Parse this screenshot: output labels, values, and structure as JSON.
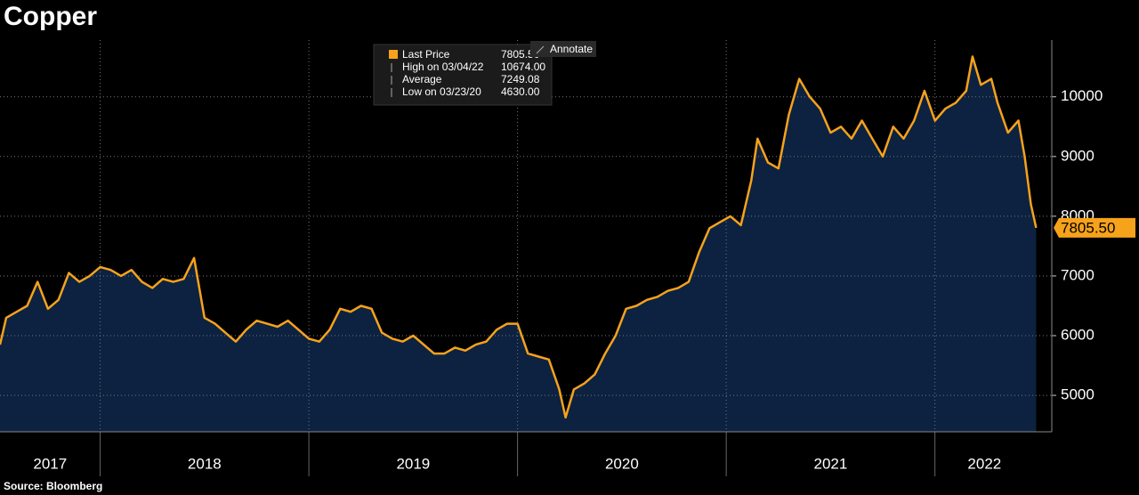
{
  "chart_data": {
    "type": "line",
    "title": "Copper",
    "source": "Source: Bloomberg",
    "annotate": "Annotate",
    "legend_box": [
      {
        "label": "High on 03/04/22",
        "value": "10674.00"
      },
      {
        "label": "Average",
        "value": "7249.08"
      },
      {
        "label": "Low on 03/23/20",
        "value": "4630.00"
      }
    ],
    "legend_last_value": "7805.50",
    "x": [
      2017.52,
      2017.55,
      2017.6,
      2017.65,
      2017.7,
      2017.75,
      2017.8,
      2017.85,
      2017.9,
      2017.95,
      2018.0,
      2018.05,
      2018.1,
      2018.15,
      2018.2,
      2018.25,
      2018.3,
      2018.35,
      2018.4,
      2018.45,
      2018.5,
      2018.55,
      2018.6,
      2018.65,
      2018.7,
      2018.75,
      2018.8,
      2018.85,
      2018.9,
      2018.95,
      2019.0,
      2019.05,
      2019.1,
      2019.15,
      2019.2,
      2019.25,
      2019.3,
      2019.35,
      2019.4,
      2019.45,
      2019.5,
      2019.55,
      2019.6,
      2019.65,
      2019.7,
      2019.75,
      2019.8,
      2019.85,
      2019.9,
      2019.95,
      2020.0,
      2020.05,
      2020.1,
      2020.15,
      2020.2,
      2020.23,
      2020.27,
      2020.32,
      2020.37,
      2020.42,
      2020.47,
      2020.52,
      2020.57,
      2020.62,
      2020.67,
      2020.72,
      2020.77,
      2020.82,
      2020.87,
      2020.92,
      2020.97,
      2021.02,
      2021.07,
      2021.12,
      2021.15,
      2021.2,
      2021.25,
      2021.3,
      2021.35,
      2021.4,
      2021.45,
      2021.5,
      2021.55,
      2021.6,
      2021.65,
      2021.7,
      2021.75,
      2021.8,
      2021.85,
      2021.9,
      2021.95,
      2022.0,
      2022.05,
      2022.1,
      2022.15,
      2022.18,
      2022.22,
      2022.27,
      2022.3,
      2022.35,
      2022.4,
      2022.43,
      2022.46,
      2022.485
    ],
    "series": [
      {
        "name": "Last Price",
        "color": "#f7a21b",
        "fill": "#0c2240",
        "values": [
          5850,
          6300,
          6400,
          6500,
          6900,
          6450,
          6600,
          7050,
          6900,
          7000,
          7150,
          7100,
          7000,
          7100,
          6900,
          6800,
          6950,
          6900,
          6950,
          7300,
          6300,
          6200,
          6050,
          5900,
          6100,
          6250,
          6200,
          6150,
          6250,
          6100,
          5950,
          5900,
          6100,
          6450,
          6400,
          6500,
          6450,
          6050,
          5950,
          5900,
          6000,
          5850,
          5700,
          5700,
          5800,
          5750,
          5850,
          5900,
          6100,
          6200,
          6200,
          5700,
          5650,
          5600,
          5100,
          4630,
          5100,
          5200,
          5350,
          5700,
          6000,
          6450,
          6500,
          6600,
          6650,
          6750,
          6800,
          6900,
          7400,
          7800,
          7900,
          8000,
          7850,
          8600,
          9300,
          8900,
          8800,
          9700,
          10300,
          10000,
          9800,
          9400,
          9500,
          9300,
          9600,
          9300,
          9000,
          9500,
          9300,
          9600,
          10100,
          9600,
          9800,
          9900,
          10100,
          10674,
          10200,
          10300,
          9900,
          9400,
          9600,
          9000,
          8200,
          7805.5
        ],
        "value_labels": [
          null,
          null,
          null,
          null,
          null,
          null,
          null,
          null,
          null,
          null,
          null,
          null,
          null,
          null,
          null,
          null,
          null,
          null,
          null,
          null,
          null,
          null,
          null,
          null,
          null,
          null,
          null,
          null,
          null,
          null,
          null,
          null,
          null,
          null,
          null,
          null,
          null,
          null,
          null,
          null,
          null,
          null,
          null,
          null,
          null,
          null,
          null,
          null,
          null,
          null,
          null,
          null,
          null,
          null,
          null,
          null,
          null,
          null,
          null,
          null,
          null,
          null,
          null,
          null,
          null,
          null,
          null,
          null,
          null,
          null,
          null,
          null,
          null,
          null,
          null,
          null,
          null,
          null,
          null,
          null,
          null,
          null,
          null,
          null,
          null,
          null,
          null,
          null,
          null,
          null,
          null,
          null,
          null,
          null,
          null,
          null,
          null,
          null,
          null,
          null,
          null,
          null,
          null,
          "7805.50"
        ]
      }
    ],
    "xlim": [
      2017.52,
      2022.56
    ],
    "xticks": [
      2017,
      2018,
      2019,
      2020,
      2021,
      2022
    ],
    "ylim": [
      4390,
      10950
    ],
    "yticks": [
      5000,
      6000,
      7000,
      8000,
      9000,
      10000
    ],
    "grid": true
  }
}
